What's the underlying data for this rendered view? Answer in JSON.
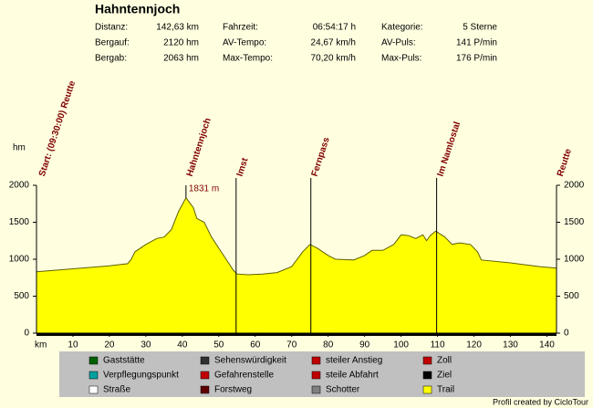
{
  "chart_data": {
    "type": "area",
    "title": "Hahntennjoch",
    "stats": [
      [
        {
          "label": "Distanz:",
          "value": "142,63 km"
        },
        {
          "label": "Fahrzeit:",
          "value": "06:54:17 h"
        },
        {
          "label": "Kategorie:",
          "value": "5 Sterne"
        }
      ],
      [
        {
          "label": "Bergauf:",
          "value": "2120 hm"
        },
        {
          "label": "AV-Tempo:",
          "value": "24,67 km/h"
        },
        {
          "label": "AV-Puls:",
          "value": "141 P/min"
        }
      ],
      [
        {
          "label": "Bergab:",
          "value": "2063 hm"
        },
        {
          "label": "Max-Tempo:",
          "value": "70,20 km/h"
        },
        {
          "label": "Max-Puls:",
          "value": "176 P/min"
        }
      ]
    ],
    "y_label": "hm",
    "x_label": "km",
    "x": [
      0,
      10,
      20,
      25,
      26,
      27,
      30,
      33,
      35,
      37,
      39,
      41,
      43,
      44,
      46,
      48,
      50,
      52,
      54,
      55,
      58,
      62,
      66,
      70,
      73,
      75,
      77,
      80,
      82,
      87,
      90,
      92,
      95,
      98,
      100,
      102,
      104,
      106,
      107,
      108,
      109.5,
      112,
      114,
      116,
      119,
      121,
      122,
      130,
      138,
      142.63
    ],
    "values": [
      830,
      870,
      910,
      940,
      1000,
      1100,
      1200,
      1280,
      1300,
      1400,
      1650,
      1831,
      1700,
      1550,
      1500,
      1300,
      1150,
      1000,
      850,
      800,
      790,
      800,
      820,
      900,
      1100,
      1200,
      1150,
      1050,
      1000,
      990,
      1050,
      1120,
      1120,
      1200,
      1330,
      1320,
      1280,
      1330,
      1250,
      1320,
      1380,
      1300,
      1200,
      1220,
      1200,
      1100,
      990,
      950,
      900,
      880
    ],
    "color": "#ffff00",
    "xlim": [
      0,
      142.63
    ],
    "ylim": [
      0,
      2000
    ],
    "xticks": [
      10,
      20,
      30,
      40,
      50,
      60,
      70,
      80,
      90,
      100,
      110,
      120,
      130,
      140
    ],
    "yticks": [
      0,
      500,
      1000,
      1500,
      2000
    ],
    "waypoints": [
      {
        "label": "Start: (09:30:00) Reutte",
        "x": 0
      },
      {
        "label": "Hahntennjoch",
        "x": 41
      },
      {
        "label": "Imst",
        "x": 54.75
      },
      {
        "label": "Fernpass",
        "x": 75.25
      },
      {
        "label": "Im Namlostal",
        "x": 109.75
      },
      {
        "label": "Reutte",
        "x": 142.63
      }
    ],
    "annotation": {
      "text": "1831 m",
      "x": 41,
      "y": 1831
    },
    "legend_items": [
      "Gaststätte",
      "Sehenswürdigkeit",
      "steiler Anstieg",
      "Zoll",
      "Verpflegungspunkt",
      "Gefahrenstelle",
      "steile Abfahrt",
      "Ziel",
      "Straße",
      "Forstweg",
      "Schotter",
      "Trail"
    ],
    "credit": "Profil created by CicloTour"
  }
}
